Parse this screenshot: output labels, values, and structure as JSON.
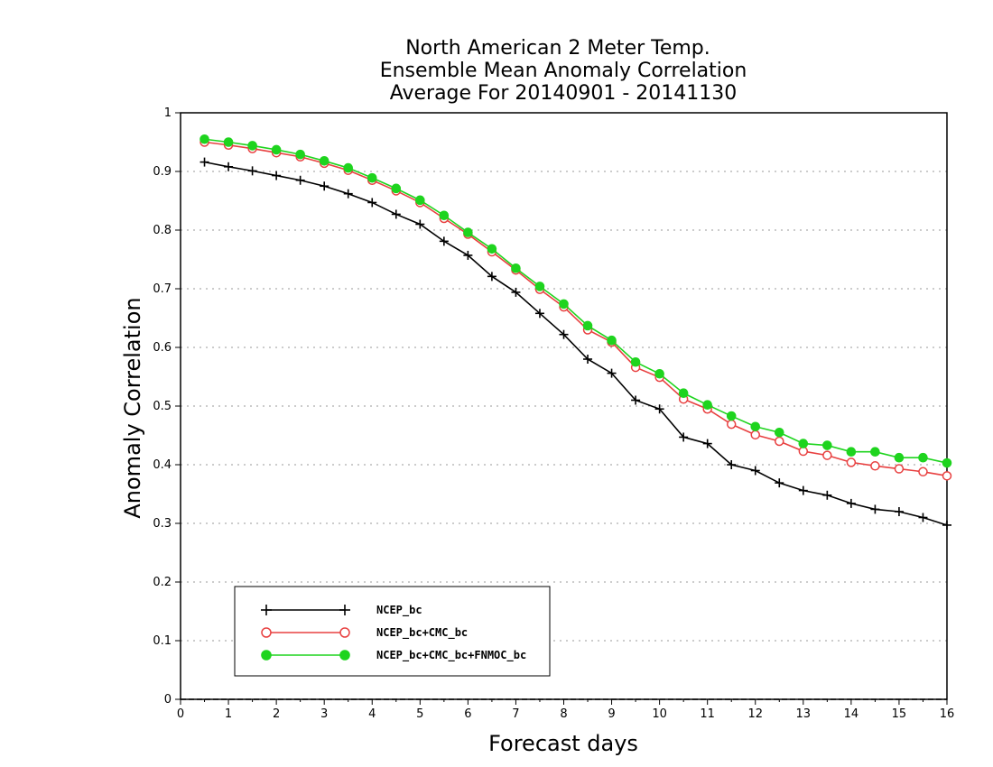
{
  "chart_data": {
    "type": "line",
    "title": [
      "North American 2 Meter Temp.",
      "Ensemble Mean Anomaly Correlation",
      "Average For 20140901 - 20141130"
    ],
    "xlabel": "Forecast days",
    "ylabel": "Anomaly Correlation",
    "xlim": [
      0,
      16
    ],
    "ylim": [
      0,
      1
    ],
    "xticks": [
      "0",
      "1",
      "2",
      "3",
      "4",
      "5",
      "6",
      "7",
      "8",
      "9",
      "10",
      "11",
      "12",
      "13",
      "14",
      "15",
      "16"
    ],
    "yticks": [
      "0",
      "0.1",
      "0.2",
      "0.3",
      "0.4",
      "0.5",
      "0.6",
      "0.7",
      "0.8",
      "0.9",
      "1"
    ],
    "grid": "dotted horizontal",
    "legend_position": "bottom-left",
    "x": [
      0.5,
      1,
      1.5,
      2,
      2.5,
      3,
      3.5,
      4,
      4.5,
      5,
      5.5,
      6,
      6.5,
      7,
      7.5,
      8,
      8.5,
      9,
      9.5,
      10,
      10.5,
      11,
      11.5,
      12,
      12.5,
      13,
      13.5,
      14,
      14.5,
      15,
      15.5,
      16
    ],
    "series": [
      {
        "name": "NCEP_bc",
        "color": "#000000",
        "marker": "plus",
        "values": [
          0.916,
          0.908,
          0.901,
          0.893,
          0.885,
          0.875,
          0.862,
          0.847,
          0.827,
          0.81,
          0.781,
          0.757,
          0.721,
          0.694,
          0.658,
          0.622,
          0.58,
          0.556,
          0.51,
          0.495,
          0.447,
          0.436,
          0.4,
          0.39,
          0.369,
          0.356,
          0.348,
          0.334,
          0.324,
          0.32,
          0.31,
          0.297
        ]
      },
      {
        "name": "NCEP_bc+CMC_bc",
        "color": "#e84040",
        "marker": "open-circle",
        "values": [
          0.95,
          0.945,
          0.939,
          0.932,
          0.925,
          0.914,
          0.902,
          0.885,
          0.867,
          0.847,
          0.82,
          0.793,
          0.763,
          0.732,
          0.699,
          0.669,
          0.63,
          0.609,
          0.566,
          0.549,
          0.512,
          0.495,
          0.469,
          0.451,
          0.44,
          0.423,
          0.416,
          0.404,
          0.398,
          0.393,
          0.388,
          0.381
        ]
      },
      {
        "name": "NCEP_bc+CMC_bc+FNMOC_bc",
        "color": "#1ed41e",
        "marker": "filled-circle",
        "values": [
          0.955,
          0.95,
          0.944,
          0.937,
          0.929,
          0.918,
          0.906,
          0.889,
          0.871,
          0.851,
          0.825,
          0.796,
          0.768,
          0.735,
          0.704,
          0.674,
          0.637,
          0.612,
          0.575,
          0.555,
          0.522,
          0.502,
          0.483,
          0.465,
          0.455,
          0.436,
          0.433,
          0.422,
          0.422,
          0.412,
          0.412,
          0.403
        ]
      }
    ]
  }
}
